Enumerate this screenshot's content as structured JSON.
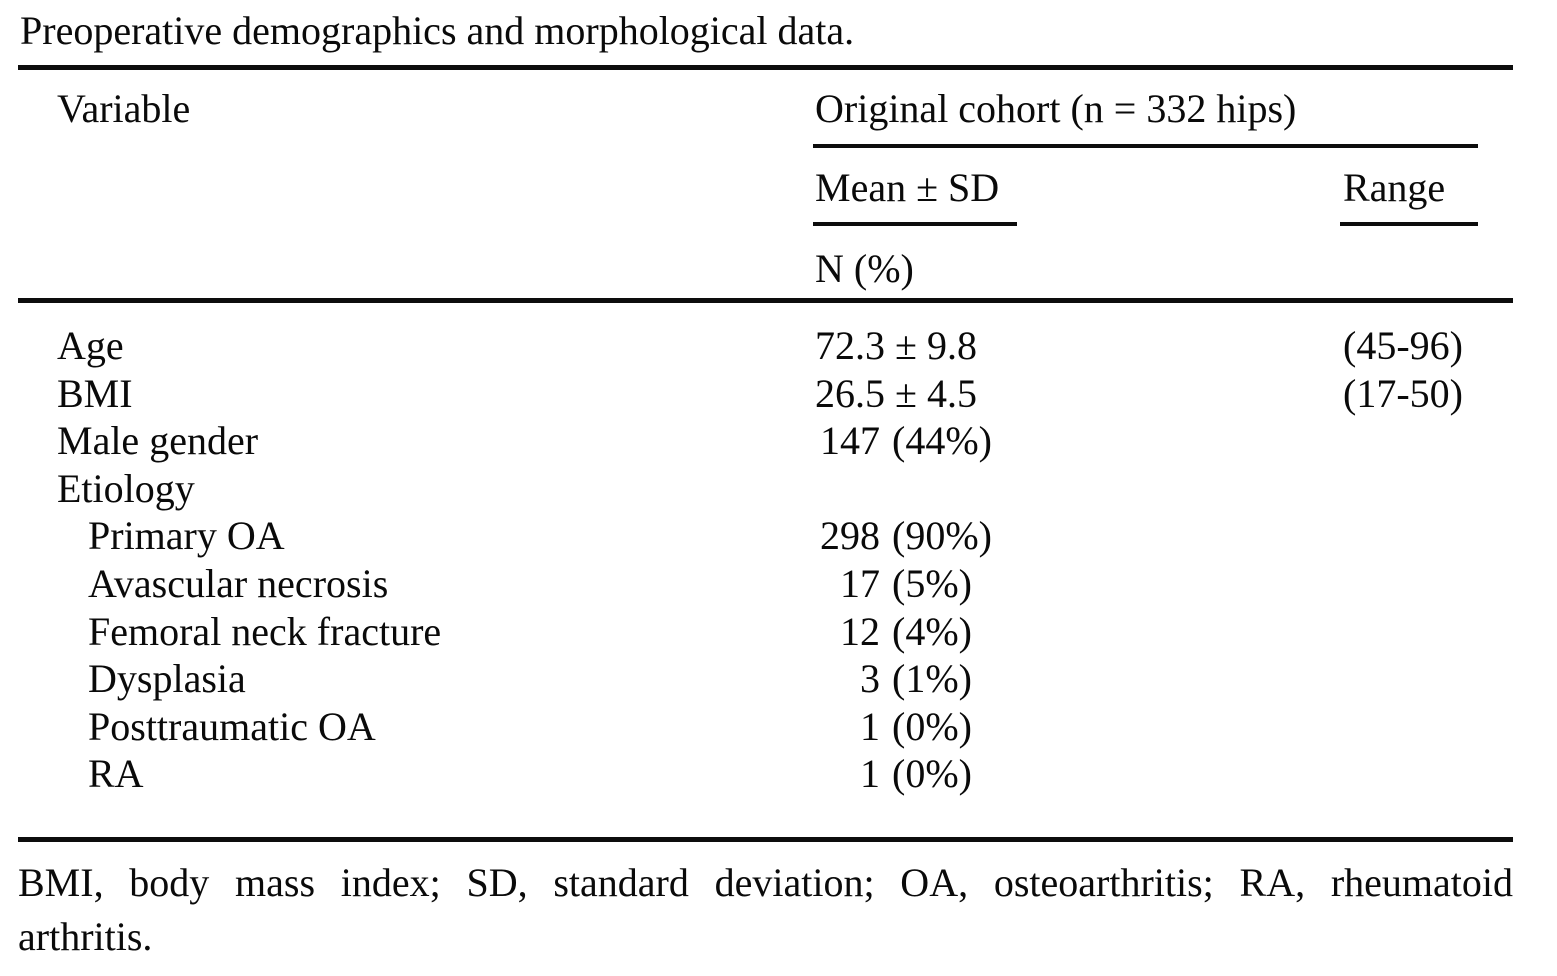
{
  "caption": "Preoperative demographics and morphological data.",
  "table": {
    "col1_header": "Variable",
    "group_header": "Original cohort (n = 332 hips)",
    "sub_headers": {
      "mean_sd": "Mean ± SD",
      "range": "Range",
      "n_pct": "N (%)"
    },
    "rows": [
      {
        "label": "Age",
        "value": "72.3 ± 9.8",
        "range": "(45-96)"
      },
      {
        "label": "BMI",
        "value": "26.5 ± 4.5",
        "range": "(17-50)"
      },
      {
        "label": "Male gender",
        "num": "147",
        "pct": "(44%)"
      },
      {
        "label": "Etiology"
      },
      {
        "label": "Primary OA",
        "num": "298",
        "pct": "(90%)"
      },
      {
        "label": "Avascular necrosis",
        "num": "17",
        "pct": "(5%)"
      },
      {
        "label": "Femoral neck fracture",
        "num": "12",
        "pct": "(4%)"
      },
      {
        "label": "Dysplasia",
        "num": "3",
        "pct": "(1%)"
      },
      {
        "label": "Posttraumatic OA",
        "num": "1",
        "pct": "(0%)"
      },
      {
        "label": "RA",
        "num": "1",
        "pct": "(0%)"
      }
    ]
  },
  "footnote": {
    "line1": "BMI, body mass index; SD, standard deviation; OA, osteoarthritis; RA, rheumatoid",
    "line2": "arthritis."
  },
  "colors": {
    "background": "#ffffff",
    "text": "#0a0a0a",
    "rule": "#0d0d0d"
  }
}
